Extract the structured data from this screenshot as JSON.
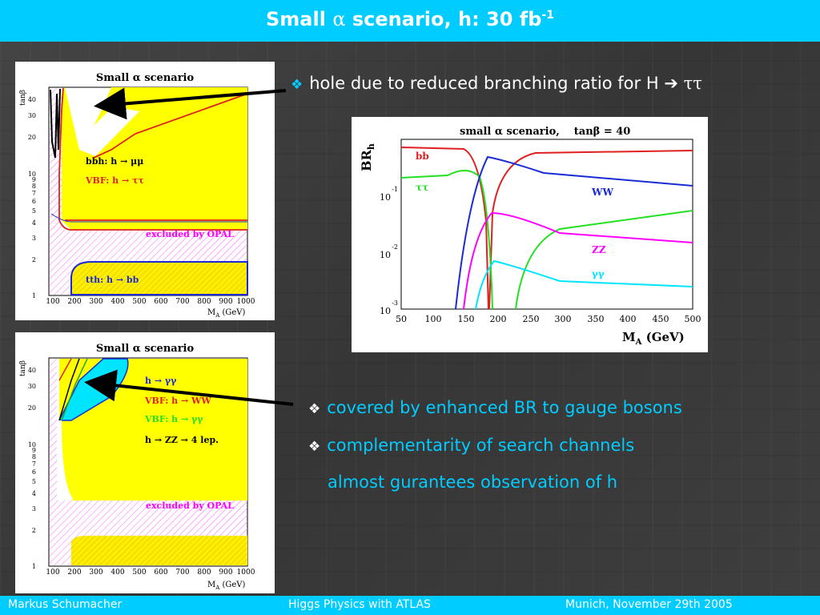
{
  "header": {
    "title_pre": "Small ",
    "title_alpha": "α",
    "title_post": " scenario, h: 30 fb",
    "title_sup": "-1"
  },
  "colors": {
    "accent": "#00ccff",
    "yellow": "#ffff00",
    "red": "#e02020",
    "blue": "#1a2bd6",
    "magenta": "#ff00ff",
    "green": "#22e022",
    "cyan": "#00e5ff"
  },
  "plot_top": {
    "title": "Small α scenario",
    "ylabel": "tanβ",
    "xlabel": "M",
    "xlabel_sub": "A",
    "xlabel_unit": " (GeV)",
    "xticks": [
      "100",
      "200",
      "300",
      "400",
      "500",
      "600",
      "700",
      "800",
      "900",
      "1000"
    ],
    "yticks": [
      "1",
      "2",
      "3",
      "4",
      "5",
      "6",
      "7",
      "8",
      "9",
      "10",
      "20",
      "30",
      "40"
    ],
    "labels": {
      "bbh": "bbh: h → μμ",
      "vbf": "VBF: h → ττ",
      "opal": "excluded by OPAL",
      "tth": "tth: h → bb"
    }
  },
  "plot_bottom": {
    "title": "Small α scenario",
    "ylabel": "tanβ",
    "xlabel": "M",
    "xlabel_sub": "A",
    "xlabel_unit": " (GeV)",
    "xticks": [
      "100",
      "200",
      "300",
      "400",
      "500",
      "600",
      "700",
      "800",
      "900",
      "1000"
    ],
    "yticks": [
      "1",
      "2",
      "3",
      "4",
      "5",
      "6",
      "7",
      "8",
      "9",
      "10",
      "20",
      "30",
      "40"
    ],
    "labels": {
      "hgg": "h → γγ",
      "vbfww": "VBF: h → WW",
      "vbfgg": "VBF: h → γγ",
      "zz": "h → ZZ → 4 lep.",
      "opal": "excluded by OPAL"
    }
  },
  "br_plot": {
    "title_pre": "small α scenario,",
    "title_post": "tanβ = 40",
    "ylabel": "BR",
    "ylabel_sub": "h",
    "xlabel": "M",
    "xlabel_sub": "A",
    "xlabel_unit": " (GeV)",
    "xticks": [
      "50",
      "100",
      "150",
      "200",
      "250",
      "300",
      "350",
      "400",
      "450",
      "500"
    ],
    "yticks": [
      {
        "base": "10",
        "exp": "-1"
      },
      {
        "base": "10",
        "exp": "-2"
      },
      {
        "base": "10",
        "exp": "-3"
      }
    ],
    "series_labels": {
      "bb": "bb",
      "tautau": "ττ",
      "ww": "WW",
      "zz": "ZZ",
      "gg": "γγ"
    }
  },
  "bullets": {
    "b1": "hole due to reduced branching ratio for H",
    "b1_arrow": "➔",
    "b1_tail": "ττ",
    "b2": "covered by enhanced BR to gauge bosons",
    "b3": "complementarity of search channels",
    "b4": "almost gurantees observation of h",
    "diamond": "❖"
  },
  "footer": {
    "author": "Markus  Schumacher",
    "talk": "Higgs Physics  with ATLAS",
    "place": "Munich, November 29th 2005"
  }
}
